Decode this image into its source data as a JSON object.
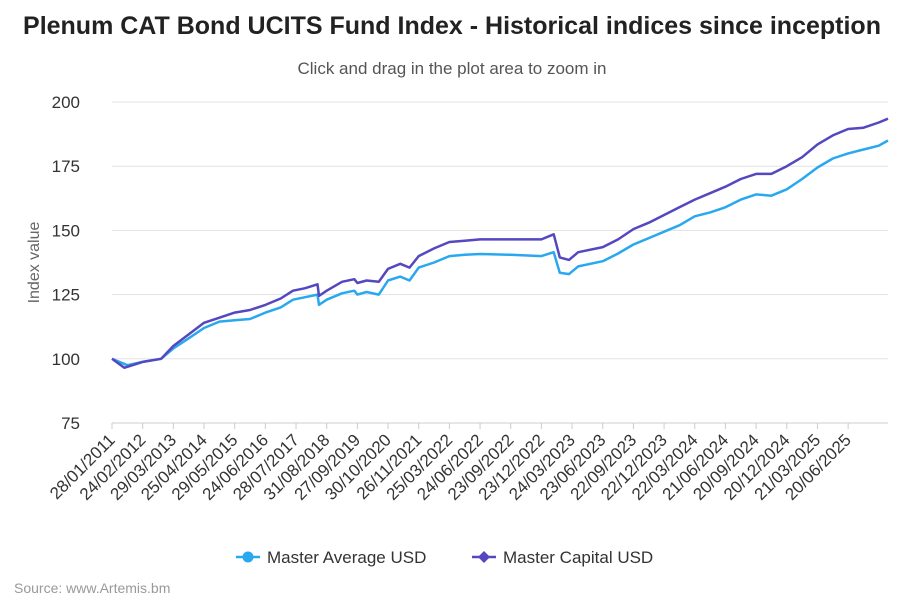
{
  "header": {
    "title": "Plenum CAT Bond UCITS Fund Index - Historical indices since inception",
    "subtitle": "Click and drag in the plot area to zoom in"
  },
  "footer": {
    "source": "Source: www.Artemis.bm"
  },
  "chart_data": {
    "type": "line",
    "ylabel": "Index value",
    "ylim": [
      75,
      200
    ],
    "yticks": [
      75,
      100,
      125,
      150,
      175,
      200
    ],
    "grid": true,
    "legend_position": "bottom-center",
    "x_tick_labels": [
      "28/01/2011",
      "24/02/2012",
      "29/03/2013",
      "25/04/2014",
      "29/05/2015",
      "24/06/2016",
      "28/07/2017",
      "31/08/2018",
      "27/09/2019",
      "30/10/2020",
      "26/11/2021",
      "25/03/2022",
      "24/06/2022",
      "23/09/2022",
      "23/12/2022",
      "24/03/2023",
      "23/06/2023",
      "22/09/2023",
      "22/12/2023",
      "22/03/2024",
      "21/06/2024",
      "20/09/2024",
      "20/12/2024",
      "21/03/2025",
      "20/06/2025"
    ],
    "series": [
      {
        "name": "Master Average USD",
        "color": "#29a8f0",
        "points": [
          [
            0,
            100
          ],
          [
            0.5,
            97.5
          ],
          [
            1,
            98.8
          ],
          [
            1.6,
            100
          ],
          [
            2,
            104
          ],
          [
            2.5,
            108
          ],
          [
            3,
            112
          ],
          [
            3.5,
            114.5
          ],
          [
            4,
            115
          ],
          [
            4.5,
            115.5
          ],
          [
            5,
            118
          ],
          [
            5.5,
            120
          ],
          [
            5.9,
            123
          ],
          [
            6.3,
            124
          ],
          [
            6.7,
            125
          ],
          [
            6.75,
            121
          ],
          [
            7,
            123
          ],
          [
            7.5,
            125.5
          ],
          [
            7.9,
            126.5
          ],
          [
            8,
            125
          ],
          [
            8.3,
            126
          ],
          [
            8.7,
            125
          ],
          [
            9,
            130.5
          ],
          [
            9.4,
            132
          ],
          [
            9.7,
            130.5
          ],
          [
            10,
            135.5
          ],
          [
            10.5,
            137.5
          ],
          [
            11,
            140
          ],
          [
            11.5,
            140.5
          ],
          [
            12,
            140.8
          ],
          [
            13,
            140.5
          ],
          [
            14,
            140
          ],
          [
            14.4,
            141.5
          ],
          [
            14.6,
            133.5
          ],
          [
            14.9,
            133
          ],
          [
            15.2,
            136
          ],
          [
            16,
            138
          ],
          [
            16.5,
            141
          ],
          [
            17,
            144.5
          ],
          [
            17.5,
            147
          ],
          [
            18,
            149.5
          ],
          [
            18.5,
            152
          ],
          [
            19,
            155.5
          ],
          [
            19.5,
            157
          ],
          [
            20,
            159
          ],
          [
            20.5,
            162
          ],
          [
            21,
            164
          ],
          [
            21.5,
            163.5
          ],
          [
            22,
            166
          ],
          [
            22.5,
            170
          ],
          [
            23,
            174.5
          ],
          [
            23.5,
            178
          ],
          [
            24,
            180
          ],
          [
            24.5,
            181.5
          ],
          [
            25,
            183
          ],
          [
            25.3,
            185
          ]
        ]
      },
      {
        "name": "Master Capital USD",
        "color": "#5447c0",
        "points": [
          [
            0,
            100
          ],
          [
            0.4,
            96.5
          ],
          [
            1,
            98.8
          ],
          [
            1.6,
            100
          ],
          [
            2,
            105
          ],
          [
            2.5,
            109.5
          ],
          [
            3,
            114
          ],
          [
            3.5,
            116
          ],
          [
            4,
            118
          ],
          [
            4.5,
            119
          ],
          [
            5,
            121
          ],
          [
            5.5,
            123.5
          ],
          [
            5.9,
            126.5
          ],
          [
            6.3,
            127.5
          ],
          [
            6.7,
            129
          ],
          [
            6.75,
            124.5
          ],
          [
            7,
            126.5
          ],
          [
            7.5,
            130
          ],
          [
            7.9,
            131
          ],
          [
            8,
            129.5
          ],
          [
            8.3,
            130.5
          ],
          [
            8.7,
            130
          ],
          [
            9,
            135
          ],
          [
            9.4,
            137
          ],
          [
            9.7,
            135.5
          ],
          [
            10,
            140
          ],
          [
            10.5,
            143
          ],
          [
            11,
            145.5
          ],
          [
            11.5,
            146
          ],
          [
            12,
            146.5
          ],
          [
            13,
            146.5
          ],
          [
            14,
            146.5
          ],
          [
            14.4,
            148.5
          ],
          [
            14.6,
            139.5
          ],
          [
            14.9,
            138.5
          ],
          [
            15.2,
            141.5
          ],
          [
            16,
            143.5
          ],
          [
            16.5,
            146.5
          ],
          [
            17,
            150.5
          ],
          [
            17.5,
            153
          ],
          [
            18,
            156
          ],
          [
            18.5,
            159
          ],
          [
            19,
            162
          ],
          [
            19.5,
            164.5
          ],
          [
            20,
            167
          ],
          [
            20.5,
            170
          ],
          [
            21,
            172
          ],
          [
            21.5,
            172
          ],
          [
            22,
            175
          ],
          [
            22.5,
            178.5
          ],
          [
            23,
            183.5
          ],
          [
            23.5,
            187
          ],
          [
            24,
            189.5
          ],
          [
            24.5,
            190
          ],
          [
            25,
            192
          ],
          [
            25.3,
            193.5
          ]
        ]
      }
    ]
  }
}
